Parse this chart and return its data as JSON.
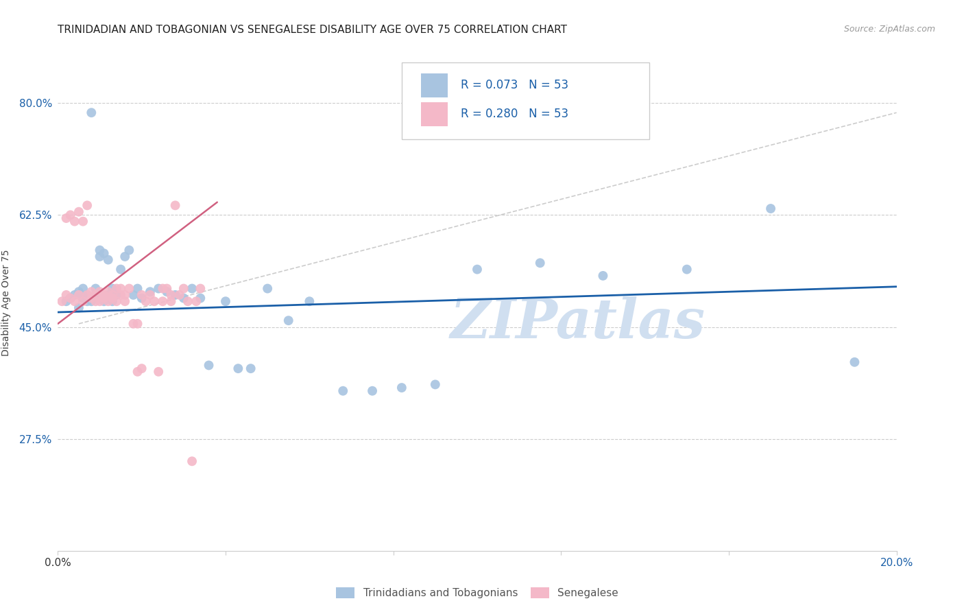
{
  "title": "TRINIDADIAN AND TOBAGONIAN VS SENEGALESE DISABILITY AGE OVER 75 CORRELATION CHART",
  "source": "Source: ZipAtlas.com",
  "ylabel": "Disability Age Over 75",
  "xlim": [
    0.0,
    0.2
  ],
  "ylim": [
    0.1,
    0.875
  ],
  "yticks": [
    0.275,
    0.45,
    0.625,
    0.8
  ],
  "ytick_labels": [
    "27.5%",
    "45.0%",
    "62.5%",
    "80.0%"
  ],
  "xticks": [
    0.0,
    0.04,
    0.08,
    0.12,
    0.16,
    0.2
  ],
  "xtick_labels": [
    "0.0%",
    "",
    "",
    "",
    "",
    "20.0%"
  ],
  "legend_labels": [
    "Trinidadians and Tobagonians",
    "Senegalese"
  ],
  "blue_R": "0.073",
  "blue_N": "53",
  "pink_R": "0.280",
  "pink_N": "53",
  "blue_color": "#a8c4e0",
  "pink_color": "#f4b8c8",
  "blue_line_color": "#1a5fa8",
  "pink_line_color": "#d06080",
  "background_color": "#ffffff",
  "watermark": "ZIPatlas",
  "watermark_color": "#d0dff0",
  "title_fontsize": 11,
  "blue_scatter_x": [
    0.002,
    0.003,
    0.004,
    0.005,
    0.005,
    0.006,
    0.006,
    0.007,
    0.007,
    0.008,
    0.008,
    0.009,
    0.009,
    0.01,
    0.01,
    0.01,
    0.011,
    0.011,
    0.012,
    0.012,
    0.013,
    0.013,
    0.014,
    0.015,
    0.016,
    0.017,
    0.018,
    0.019,
    0.02,
    0.022,
    0.024,
    0.026,
    0.028,
    0.03,
    0.032,
    0.034,
    0.036,
    0.04,
    0.043,
    0.046,
    0.05,
    0.055,
    0.06,
    0.068,
    0.075,
    0.082,
    0.09,
    0.1,
    0.115,
    0.13,
    0.15,
    0.17,
    0.19
  ],
  "blue_scatter_y": [
    0.49,
    0.495,
    0.5,
    0.505,
    0.48,
    0.51,
    0.495,
    0.5,
    0.49,
    0.785,
    0.49,
    0.5,
    0.51,
    0.56,
    0.57,
    0.5,
    0.565,
    0.49,
    0.555,
    0.5,
    0.51,
    0.49,
    0.5,
    0.54,
    0.56,
    0.57,
    0.5,
    0.51,
    0.495,
    0.505,
    0.51,
    0.505,
    0.5,
    0.495,
    0.51,
    0.495,
    0.39,
    0.49,
    0.385,
    0.385,
    0.51,
    0.46,
    0.49,
    0.35,
    0.35,
    0.355,
    0.36,
    0.54,
    0.55,
    0.53,
    0.54,
    0.635,
    0.395
  ],
  "pink_scatter_x": [
    0.001,
    0.002,
    0.002,
    0.003,
    0.003,
    0.004,
    0.004,
    0.005,
    0.005,
    0.006,
    0.006,
    0.007,
    0.007,
    0.008,
    0.008,
    0.009,
    0.009,
    0.01,
    0.01,
    0.011,
    0.011,
    0.012,
    0.012,
    0.013,
    0.013,
    0.014,
    0.014,
    0.015,
    0.015,
    0.016,
    0.016,
    0.017,
    0.018,
    0.019,
    0.019,
    0.02,
    0.02,
    0.021,
    0.022,
    0.023,
    0.024,
    0.025,
    0.025,
    0.026,
    0.027,
    0.027,
    0.028,
    0.029,
    0.03,
    0.031,
    0.032,
    0.033,
    0.034
  ],
  "pink_scatter_y": [
    0.49,
    0.5,
    0.62,
    0.495,
    0.625,
    0.615,
    0.49,
    0.5,
    0.63,
    0.615,
    0.49,
    0.64,
    0.5,
    0.495,
    0.505,
    0.49,
    0.5,
    0.505,
    0.49,
    0.495,
    0.5,
    0.505,
    0.49,
    0.5,
    0.495,
    0.51,
    0.49,
    0.5,
    0.51,
    0.49,
    0.5,
    0.51,
    0.455,
    0.38,
    0.455,
    0.385,
    0.5,
    0.49,
    0.5,
    0.49,
    0.38,
    0.51,
    0.49,
    0.51,
    0.5,
    0.49,
    0.64,
    0.5,
    0.51,
    0.49,
    0.24,
    0.49,
    0.51
  ],
  "blue_line_x": [
    0.0,
    0.2
  ],
  "blue_line_y": [
    0.473,
    0.513
  ],
  "pink_line_x": [
    0.0,
    0.038
  ],
  "pink_line_y": [
    0.455,
    0.645
  ],
  "gray_line_x": [
    0.005,
    0.2
  ],
  "gray_line_y": [
    0.455,
    0.785
  ]
}
